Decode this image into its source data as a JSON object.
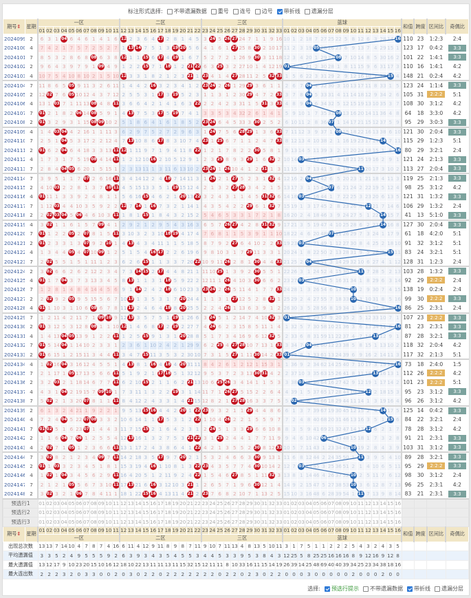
{
  "options_top": {
    "label": "标注形式选择:",
    "items": [
      {
        "label": "不带遗漏数据",
        "checked": false
      },
      {
        "label": "重号",
        "checked": false
      },
      {
        "label": "连号",
        "checked": false
      },
      {
        "label": "边号",
        "checked": false
      },
      {
        "label": "带折线",
        "checked": true
      },
      {
        "label": "遗漏分层",
        "checked": false
      }
    ]
  },
  "header": {
    "period": "期号",
    "sort_icon": "⇕",
    "week": "星期",
    "zones": [
      {
        "name": "一区",
        "from": 1,
        "to": 11
      },
      {
        "name": "二区",
        "from": 12,
        "to": 22
      },
      {
        "name": "三区",
        "from": 23,
        "to": 33
      }
    ],
    "blue_zone": "蓝球",
    "blue_count": 16,
    "sum": "和值",
    "span": "跨度",
    "zone_ratio": "区间比",
    "odd_even": "奇偶比"
  },
  "first_row_omission": {
    "red": [
      6,
      3,
      1,
      0,
      6,
      4,
      6,
      1,
      4,
      1,
      6,
      0,
      2,
      3,
      6,
      4,
      0,
      2,
      8,
      1,
      4,
      5,
      3,
      0,
      5,
      0,
      0,
      24,
      7,
      1,
      1,
      9,
      16
    ],
    "blue": [
      10,
      1,
      2,
      18,
      7,
      27,
      25,
      22,
      5,
      8,
      12,
      6,
      3,
      28,
      14,
      0
    ]
  },
  "draws": [
    [
      "2024099",
      2,
      [
        4,
        12,
        17,
        24,
        26,
        27
      ],
      16,
      110,
      23,
      "1:2:3",
      "2:4"
    ],
    [
      "2024100",
      4,
      [
        13,
        14,
        19,
        20,
        27,
        30
      ],
      5,
      123,
      17,
      "0:4:2",
      "3:3"
    ],
    [
      "2024101",
      7,
      [
        8,
        12,
        15,
        17,
        19,
        30
      ],
      8,
      101,
      22,
      "1:4:1",
      "3:3"
    ],
    [
      "2024102",
      2,
      [
        9,
        15,
        18,
        21,
        22,
        25
      ],
      1,
      110,
      16,
      "1:4:1",
      "4:2"
    ],
    [
      "2024103",
      4,
      [
        12,
        21,
        23,
        27,
        32,
        33
      ],
      15,
      148,
      21,
      "0:2:4",
      "4:2"
    ],
    [
      "2024104",
      7,
      [
        5,
        16,
        23,
        24,
        26,
        29
      ],
      4,
      123,
      24,
      "1:1:4",
      "3:3"
    ],
    [
      "2024105",
      2,
      [
        2,
        5,
        17,
        19,
        29,
        33
      ],
      4,
      105,
      31,
      "2:2:2",
      "5:1"
    ],
    [
      "2024106",
      4,
      [
        3,
        8,
        11,
        22,
        31,
        33
      ],
      4,
      108,
      30,
      "3:1:2",
      "4:2"
    ],
    [
      "2024107",
      7,
      [
        1,
        6,
        8,
        13,
        17,
        19
      ],
      8,
      64,
      18,
      "3:3:0",
      "4:2"
    ],
    [
      "2024108",
      2,
      [
        1,
        8,
        9,
        23,
        24,
        30
      ],
      7,
      95,
      29,
      "3:0:3",
      "3:3"
    ],
    [
      "2024109",
      4,
      [
        3,
        4,
        24,
        28,
        29,
        33
      ],
      8,
      121,
      30,
      "2:0:4",
      "3:3"
    ],
    [
      "2024110",
      7,
      [
        4,
        13,
        17,
        23,
        25,
        33
      ],
      14,
      115,
      29,
      "1:2:3",
      "5:1"
    ],
    [
      "2024111",
      2,
      [
        1,
        4,
        11,
        12,
        22,
        30
      ],
      16,
      80,
      29,
      "3:2:1",
      "2:4"
    ],
    [
      "2024112",
      4,
      [
        8,
        11,
        16,
        25,
        29,
        32
      ],
      3,
      121,
      24,
      "2:1:3",
      "3:3"
    ],
    [
      "2024113",
      7,
      [
        4,
        5,
        23,
        24,
        26,
        31
      ],
      11,
      113,
      27,
      "2:0:4",
      "3:3"
    ],
    [
      "2024114",
      7,
      [
        7,
        11,
        18,
        24,
        27,
        32
      ],
      4,
      119,
      25,
      "2:1:3",
      "3:3"
    ],
    [
      "2024115",
      2,
      [
        3,
        10,
        11,
        19,
        27,
        28
      ],
      7,
      98,
      25,
      "3:1:2",
      "4:2"
    ],
    [
      "2024116",
      4,
      [
        1,
        15,
        20,
        22,
        31,
        32
      ],
      3,
      121,
      31,
      "1:3:2",
      "3:3"
    ],
    [
      "2024117",
      7,
      [
        3,
        12,
        14,
        16,
        29,
        32
      ],
      12,
      106,
      29,
      "1:3:2",
      "2:4"
    ],
    [
      "2024118",
      2,
      [
        2,
        3,
        4,
        6,
        11,
        15
      ],
      14,
      41,
      13,
      "5:1:0",
      "3:3"
    ],
    [
      "2024119",
      4,
      [
        2,
        9,
        26,
        27,
        31,
        32
      ],
      14,
      127,
      30,
      "2:0:4",
      "3:3"
    ],
    [
      "2024120",
      7,
      [
        1,
        5,
        7,
        11,
        18,
        19
      ],
      7,
      61,
      18,
      "4:2:0",
      "5:1"
    ],
    [
      "2024121",
      2,
      [
        1,
        7,
        10,
        13,
        27,
        33
      ],
      3,
      91,
      32,
      "3:1:2",
      "5:1"
    ],
    [
      "2024122",
      4,
      [
        5,
        7,
        9,
        16,
        17,
        29
      ],
      15,
      83,
      24,
      "3:2:1",
      "5:1"
    ],
    [
      "2024123",
      7,
      [
        2,
        15,
        22,
        26,
        30,
        33
      ],
      4,
      128,
      31,
      "1:2:3",
      "2:4"
    ],
    [
      "2024124",
      2,
      [
        2,
        14,
        15,
        17,
        25,
        30
      ],
      11,
      103,
      28,
      "1:3:2",
      "3:3"
    ],
    [
      "2024125",
      4,
      [
        1,
        4,
        13,
        18,
        26,
        30
      ],
      3,
      92,
      29,
      "2:2:2",
      "2:4"
    ],
    [
      "2024126",
      7,
      [
        14,
        18,
        23,
        24,
        26,
        33
      ],
      10,
      138,
      19,
      "0:2:4",
      "2:4"
    ],
    [
      "2024127",
      2,
      [
        2,
        5,
        13,
        20,
        27,
        32
      ],
      10,
      99,
      30,
      "2:2:2",
      "3:3"
    ],
    [
      "2024128",
      4,
      [
        1,
        8,
        13,
        18,
        20,
        26
      ],
      16,
      86,
      25,
      "2:3:1",
      "2:4"
    ],
    [
      "2024129",
      7,
      [
        9,
        10,
        13,
        19,
        24,
        32
      ],
      1,
      107,
      23,
      "2:2:2",
      "3:3"
    ],
    [
      "2024130",
      2,
      [
        1,
        8,
        12,
        17,
        19,
        24
      ],
      16,
      81,
      23,
      "2:3:1",
      "3:3"
    ],
    [
      "2024131",
      4,
      [
        4,
        5,
        11,
        15,
        20,
        32
      ],
      13,
      87,
      28,
      "3:2:1",
      "3:3"
    ],
    [
      "2024132",
      7,
      [
        1,
        4,
        25,
        27,
        28,
        33
      ],
      4,
      118,
      32,
      "2:0:4",
      "4:2"
    ],
    [
      "2024133",
      2,
      [
        1,
        11,
        15,
        27,
        30,
        33
      ],
      1,
      117,
      32,
      "2:1:3",
      "5:1"
    ],
    [
      "2024134",
      4,
      [
        2,
        4,
        13,
        16,
        18,
        20
      ],
      16,
      73,
      18,
      "2:4:0",
      "1:5"
    ],
    [
      "2024135",
      7,
      [
        5,
        11,
        17,
        18,
        30,
        31
      ],
      13,
      112,
      26,
      "2:2:2",
      "4:2"
    ],
    [
      "2024136",
      2,
      [
        3,
        11,
        15,
        21,
        25,
        26
      ],
      3,
      101,
      23,
      "2:2:2",
      "5:1"
    ],
    [
      "2024137",
      4,
      [
        4,
        9,
        10,
        19,
        26,
        27
      ],
      12,
      95,
      23,
      "3:1:2",
      "3:3"
    ],
    [
      "2024138",
      7,
      [
        2,
        7,
        11,
        21,
        27,
        28
      ],
      2,
      96,
      26,
      "3:1:2",
      "4:2"
    ],
    [
      "2024139",
      2,
      [
        15,
        16,
        20,
        22,
        23,
        29
      ],
      14,
      125,
      14,
      "0:4:2",
      "3:3"
    ],
    [
      "2024140",
      4,
      [
        4,
        7,
        8,
        17,
        22,
        26
      ],
      15,
      84,
      22,
      "3:2:1",
      "2:4"
    ],
    [
      "2024141",
      7,
      [
        1,
        2,
        7,
        15,
        24,
        29
      ],
      12,
      78,
      28,
      "3:1:2",
      "4:2"
    ],
    [
      "2024142",
      2,
      [
        4,
        6,
        13,
        21,
        22,
        25
      ],
      6,
      91,
      21,
      "2:3:1",
      "3:3"
    ],
    [
      "2024143",
      4,
      [
        2,
        5,
        11,
        22,
        30,
        33
      ],
      10,
      103,
      31,
      "3:1:2",
      "3:3"
    ],
    [
      "2024144",
      7,
      [
        2,
        9,
        11,
        17,
        20,
        30
      ],
      11,
      89,
      28,
      "3:2:1",
      "3:3"
    ],
    [
      "2024145",
      2,
      [
        1,
        3,
        16,
        22,
        23,
        30
      ],
      3,
      95,
      29,
      "2:2:2",
      "3:3"
    ],
    [
      "2024146",
      4,
      [
        2,
        4,
        11,
        22,
        27,
        32
      ],
      10,
      98,
      30,
      "3:1:2",
      "2:4"
    ],
    [
      "2024147",
      7,
      [
        5,
        11,
        13,
        16,
        21,
        30
      ],
      10,
      96,
      25,
      "2:3:1",
      "4:2"
    ],
    [
      "2024148",
      2,
      [
        2,
        6,
        15,
        16,
        21,
        23
      ],
      11,
      83,
      21,
      "2:3:1",
      "3:3"
    ]
  ],
  "preselect_rows": [
    "预选行1",
    "预选行2",
    "预选行3"
  ],
  "stats": [
    {
      "label": "出现总次数",
      "red": [
        13,
        13,
        7,
        14,
        10,
        4,
        7,
        8,
        7,
        4,
        16,
        6,
        11,
        4,
        12,
        9,
        11,
        8,
        9,
        8,
        7,
        11,
        9,
        10,
        7,
        11,
        13,
        4,
        8,
        13,
        5,
        10,
        11
      ],
      "blue": [
        3,
        1,
        7,
        5,
        1,
        1,
        2,
        2,
        2,
        5,
        4,
        3,
        2,
        4,
        3,
        5
      ]
    },
    {
      "label": "平均遗漏值",
      "red": [
        3,
        3,
        5,
        2,
        4,
        9,
        5,
        5,
        5,
        9,
        2,
        6,
        3,
        9,
        3,
        4,
        3,
        5,
        4,
        5,
        5,
        3,
        4,
        4,
        5,
        3,
        3,
        9,
        5,
        3,
        8,
        4,
        3
      ],
      "blue": [
        12,
        25,
        5,
        8,
        25,
        25,
        16,
        16,
        16,
        8,
        9,
        12,
        16,
        9,
        12,
        8
      ]
    },
    {
      "label": "最大遗漏值",
      "red": [
        13,
        12,
        17,
        9,
        10,
        23,
        20,
        15,
        10,
        16,
        12,
        18,
        10,
        22,
        13,
        11,
        11,
        13,
        11,
        15,
        32,
        15,
        12,
        11,
        11,
        8,
        10,
        33,
        16,
        11,
        15,
        14,
        19
      ],
      "blue": [
        26,
        39,
        14,
        25,
        48,
        69,
        40,
        40,
        39,
        34,
        25,
        23,
        34,
        38,
        18,
        16
      ]
    },
    {
      "label": "最大连出数",
      "red": [
        2,
        2,
        2,
        3,
        2,
        0,
        3,
        3,
        0,
        0,
        2,
        0,
        3,
        0,
        2,
        2,
        0,
        2,
        2,
        2,
        2,
        2,
        2,
        2,
        0,
        2,
        2,
        0,
        2,
        3,
        0,
        2,
        2
      ],
      "blue": [
        0,
        0,
        0,
        3,
        0,
        0,
        0,
        0,
        0,
        2,
        0,
        0,
        0,
        2,
        0,
        0
      ]
    }
  ],
  "options_bottom": {
    "label": "选择:",
    "items": [
      {
        "label": "预选行提示",
        "checked": true
      },
      {
        "label": "不带遗漏数据",
        "checked": false
      },
      {
        "label": "带折线",
        "checked": true
      },
      {
        "label": "遗漏分层",
        "checked": false
      }
    ]
  },
  "colors": {
    "red_ball": "#c4121f",
    "blue_ball": "#2a67b0",
    "ratio_222": "#e3b35e",
    "odd_even_33": "#7ba29d",
    "header_bg": "#f1e6c6"
  }
}
